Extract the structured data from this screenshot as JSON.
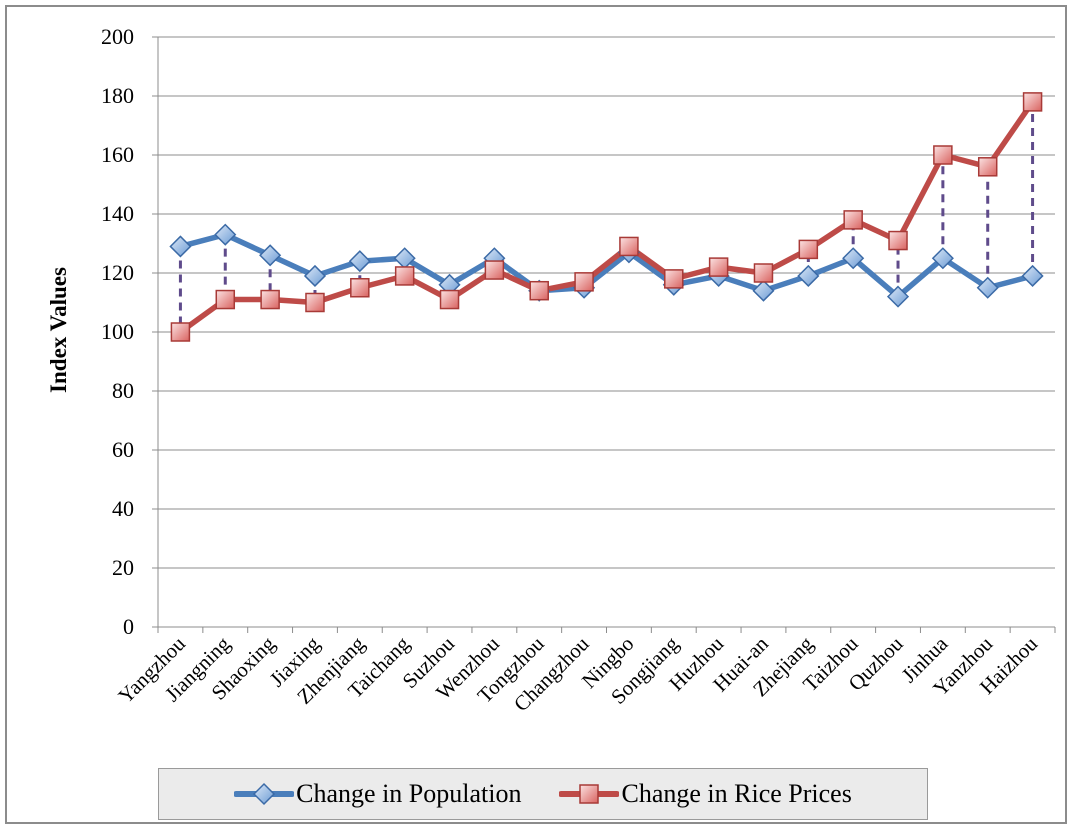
{
  "chart_data": {
    "type": "line",
    "title": "",
    "xlabel": "",
    "ylabel": "Index Values",
    "ylim": [
      0,
      200
    ],
    "yticks": [
      "0",
      "20",
      "40",
      "60",
      "80",
      "100",
      "120",
      "140",
      "160",
      "180",
      "200"
    ],
    "grid": true,
    "legend_position": "bottom",
    "categories": [
      "Yangzhou",
      "Jiangning",
      "Shaoxing",
      "Jiaxing",
      "Zhenjiang",
      "Taichang",
      "Suzhou",
      "Wenzhou",
      "Tongzhou",
      "Changzhou",
      "Ningbo",
      "Songjiang",
      "Huzhou",
      "Huai-an",
      "Zhejiang",
      "Taizhou",
      "Quzhou",
      "Jinhua",
      "Yanzhou",
      "Haizhou"
    ],
    "series": [
      {
        "name": "Change in Population",
        "color": "#4a7ebb",
        "marker": "diamond",
        "values": [
          129,
          133,
          126,
          119,
          124,
          125,
          116,
          125,
          114,
          115,
          127,
          116,
          119,
          114,
          119,
          125,
          112,
          125,
          115,
          119
        ]
      },
      {
        "name": "Change in Rice Prices",
        "color": "#be4b48",
        "marker": "square",
        "values": [
          100,
          111,
          111,
          110,
          115,
          119,
          111,
          121,
          114,
          117,
          129,
          118,
          122,
          120,
          128,
          138,
          131,
          160,
          156,
          178
        ]
      }
    ],
    "drop_lines": {
      "color": "#5f4b8b",
      "style": "dashed"
    }
  }
}
